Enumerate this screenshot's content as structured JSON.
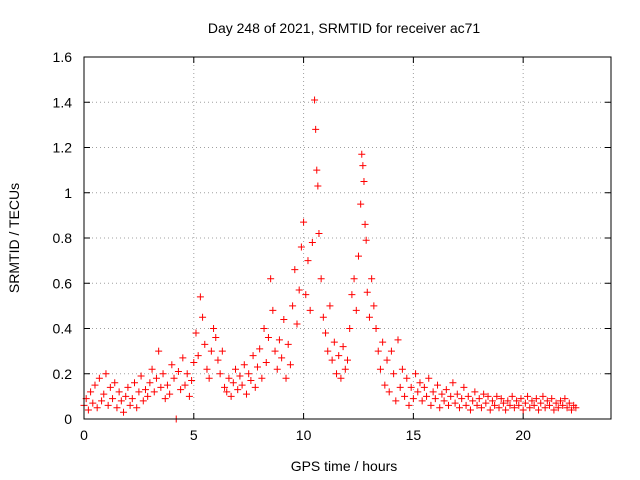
{
  "chart_data": {
    "type": "scatter",
    "title": "Day 248 of 2021, SRMTID for receiver ac71",
    "xlabel": "GPS time / hours",
    "ylabel": "SRMTID / TECUs",
    "xlim": [
      0,
      24
    ],
    "ylim": [
      0,
      1.6
    ],
    "xticks": [
      0,
      5,
      10,
      15,
      20
    ],
    "xtick_labels": [
      "0",
      "5",
      "10",
      "15",
      "20"
    ],
    "yticks": [
      0,
      0.2,
      0.4,
      0.6,
      0.8,
      1.0,
      1.2,
      1.4,
      1.6
    ],
    "ytick_labels": [
      "0",
      "0.2",
      "0.4",
      "0.6",
      "0.8",
      "1",
      "1.2",
      "1.4",
      "1.6"
    ],
    "grid": true,
    "marker": "+",
    "color": "#ff0000",
    "series": [
      {
        "name": "SRMTID",
        "points": [
          [
            0.0,
            0.06
          ],
          [
            0.1,
            0.09
          ],
          [
            0.2,
            0.04
          ],
          [
            0.3,
            0.12
          ],
          [
            0.4,
            0.07
          ],
          [
            0.5,
            0.15
          ],
          [
            0.6,
            0.05
          ],
          [
            0.7,
            0.18
          ],
          [
            0.8,
            0.08
          ],
          [
            0.9,
            0.11
          ],
          [
            1.0,
            0.2
          ],
          [
            1.1,
            0.06
          ],
          [
            1.2,
            0.14
          ],
          [
            1.3,
            0.09
          ],
          [
            1.4,
            0.16
          ],
          [
            1.5,
            0.05
          ],
          [
            1.6,
            0.12
          ],
          [
            1.7,
            0.08
          ],
          [
            1.8,
            0.03
          ],
          [
            1.9,
            0.1
          ],
          [
            2.0,
            0.14
          ],
          [
            2.1,
            0.06
          ],
          [
            2.2,
            0.09
          ],
          [
            2.3,
            0.16
          ],
          [
            2.4,
            0.05
          ],
          [
            2.5,
            0.12
          ],
          [
            2.6,
            0.19
          ],
          [
            2.7,
            0.08
          ],
          [
            2.8,
            0.13
          ],
          [
            2.9,
            0.1
          ],
          [
            3.0,
            0.16
          ],
          [
            3.1,
            0.22
          ],
          [
            3.2,
            0.12
          ],
          [
            3.3,
            0.18
          ],
          [
            3.4,
            0.3
          ],
          [
            3.5,
            0.14
          ],
          [
            3.6,
            0.2
          ],
          [
            3.7,
            0.09
          ],
          [
            3.8,
            0.15
          ],
          [
            3.9,
            0.11
          ],
          [
            4.0,
            0.24
          ],
          [
            4.1,
            0.18
          ],
          [
            4.2,
            0.0
          ],
          [
            4.3,
            0.21
          ],
          [
            4.4,
            0.13
          ],
          [
            4.5,
            0.27
          ],
          [
            4.6,
            0.15
          ],
          [
            4.7,
            0.2
          ],
          [
            4.8,
            0.1
          ],
          [
            4.9,
            0.17
          ],
          [
            5.0,
            0.25
          ],
          [
            5.1,
            0.38
          ],
          [
            5.2,
            0.28
          ],
          [
            5.3,
            0.54
          ],
          [
            5.4,
            0.45
          ],
          [
            5.5,
            0.33
          ],
          [
            5.6,
            0.22
          ],
          [
            5.7,
            0.18
          ],
          [
            5.8,
            0.3
          ],
          [
            5.9,
            0.4
          ],
          [
            6.0,
            0.36
          ],
          [
            6.1,
            0.26
          ],
          [
            6.2,
            0.2
          ],
          [
            6.3,
            0.3
          ],
          [
            6.4,
            0.14
          ],
          [
            6.5,
            0.12
          ],
          [
            6.6,
            0.18
          ],
          [
            6.7,
            0.1
          ],
          [
            6.8,
            0.16
          ],
          [
            6.9,
            0.22
          ],
          [
            7.0,
            0.13
          ],
          [
            7.1,
            0.19
          ],
          [
            7.2,
            0.15
          ],
          [
            7.3,
            0.24
          ],
          [
            7.4,
            0.11
          ],
          [
            7.5,
            0.2
          ],
          [
            7.6,
            0.17
          ],
          [
            7.7,
            0.28
          ],
          [
            7.8,
            0.14
          ],
          [
            7.9,
            0.23
          ],
          [
            8.0,
            0.31
          ],
          [
            8.1,
            0.18
          ],
          [
            8.2,
            0.4
          ],
          [
            8.3,
            0.25
          ],
          [
            8.4,
            0.36
          ],
          [
            8.5,
            0.62
          ],
          [
            8.6,
            0.48
          ],
          [
            8.7,
            0.3
          ],
          [
            8.8,
            0.22
          ],
          [
            8.9,
            0.35
          ],
          [
            9.0,
            0.27
          ],
          [
            9.1,
            0.44
          ],
          [
            9.2,
            0.18
          ],
          [
            9.3,
            0.33
          ],
          [
            9.4,
            0.24
          ],
          [
            9.5,
            0.5
          ],
          [
            9.6,
            0.66
          ],
          [
            9.7,
            0.42
          ],
          [
            9.8,
            0.57
          ],
          [
            9.9,
            0.76
          ],
          [
            10.0,
            0.87
          ],
          [
            10.1,
            0.55
          ],
          [
            10.2,
            0.7
          ],
          [
            10.3,
            0.48
          ],
          [
            10.4,
            0.78
          ],
          [
            10.5,
            1.41
          ],
          [
            10.55,
            1.28
          ],
          [
            10.6,
            1.1
          ],
          [
            10.65,
            1.03
          ],
          [
            10.7,
            0.82
          ],
          [
            10.8,
            0.62
          ],
          [
            10.9,
            0.45
          ],
          [
            11.0,
            0.38
          ],
          [
            11.1,
            0.3
          ],
          [
            11.2,
            0.5
          ],
          [
            11.3,
            0.26
          ],
          [
            11.4,
            0.34
          ],
          [
            11.5,
            0.2
          ],
          [
            11.6,
            0.28
          ],
          [
            11.7,
            0.18
          ],
          [
            11.8,
            0.32
          ],
          [
            11.9,
            0.22
          ],
          [
            12.0,
            0.26
          ],
          [
            12.1,
            0.4
          ],
          [
            12.2,
            0.55
          ],
          [
            12.3,
            0.62
          ],
          [
            12.4,
            0.48
          ],
          [
            12.5,
            0.72
          ],
          [
            12.6,
            0.95
          ],
          [
            12.65,
            1.17
          ],
          [
            12.7,
            1.12
          ],
          [
            12.75,
            1.05
          ],
          [
            12.8,
            0.86
          ],
          [
            12.85,
            0.79
          ],
          [
            12.9,
            0.56
          ],
          [
            13.0,
            0.45
          ],
          [
            13.1,
            0.62
          ],
          [
            13.2,
            0.5
          ],
          [
            13.3,
            0.4
          ],
          [
            13.4,
            0.3
          ],
          [
            13.5,
            0.22
          ],
          [
            13.6,
            0.34
          ],
          [
            13.7,
            0.15
          ],
          [
            13.8,
            0.26
          ],
          [
            13.9,
            0.12
          ],
          [
            14.0,
            0.3
          ],
          [
            14.1,
            0.2
          ],
          [
            14.2,
            0.08
          ],
          [
            14.3,
            0.35
          ],
          [
            14.4,
            0.14
          ],
          [
            14.5,
            0.22
          ],
          [
            14.6,
            0.1
          ],
          [
            14.7,
            0.18
          ],
          [
            14.8,
            0.06
          ],
          [
            14.9,
            0.14
          ],
          [
            15.0,
            0.09
          ],
          [
            15.1,
            0.2
          ],
          [
            15.2,
            0.12
          ],
          [
            15.3,
            0.16
          ],
          [
            15.4,
            0.08
          ],
          [
            15.5,
            0.14
          ],
          [
            15.6,
            0.1
          ],
          [
            15.7,
            0.18
          ],
          [
            15.8,
            0.06
          ],
          [
            15.9,
            0.12
          ],
          [
            16.0,
            0.09
          ],
          [
            16.1,
            0.15
          ],
          [
            16.2,
            0.05
          ],
          [
            16.3,
            0.11
          ],
          [
            16.4,
            0.08
          ],
          [
            16.5,
            0.13
          ],
          [
            16.6,
            0.06
          ],
          [
            16.7,
            0.1
          ],
          [
            16.8,
            0.16
          ],
          [
            16.9,
            0.07
          ],
          [
            17.0,
            0.11
          ],
          [
            17.1,
            0.05
          ],
          [
            17.2,
            0.09
          ],
          [
            17.3,
            0.14
          ],
          [
            17.4,
            0.06
          ],
          [
            17.5,
            0.1
          ],
          [
            17.6,
            0.04
          ],
          [
            17.7,
            0.08
          ],
          [
            17.8,
            0.12
          ],
          [
            17.9,
            0.06
          ],
          [
            18.0,
            0.09
          ],
          [
            18.1,
            0.05
          ],
          [
            18.2,
            0.11
          ],
          [
            18.3,
            0.07
          ],
          [
            18.4,
            0.1
          ],
          [
            18.5,
            0.04
          ],
          [
            18.6,
            0.08
          ],
          [
            18.7,
            0.06
          ],
          [
            18.8,
            0.1
          ],
          [
            18.9,
            0.05
          ],
          [
            19.0,
            0.09
          ],
          [
            19.1,
            0.07
          ],
          [
            19.2,
            0.04
          ],
          [
            19.3,
            0.08
          ],
          [
            19.4,
            0.06
          ],
          [
            19.5,
            0.1
          ],
          [
            19.6,
            0.05
          ],
          [
            19.7,
            0.08
          ],
          [
            19.8,
            0.06
          ],
          [
            19.9,
            0.09
          ],
          [
            20.0,
            0.04
          ],
          [
            20.1,
            0.07
          ],
          [
            20.2,
            0.1
          ],
          [
            20.3,
            0.05
          ],
          [
            20.4,
            0.08
          ],
          [
            20.5,
            0.06
          ],
          [
            20.6,
            0.09
          ],
          [
            20.7,
            0.04
          ],
          [
            20.8,
            0.07
          ],
          [
            20.9,
            0.1
          ],
          [
            21.0,
            0.05
          ],
          [
            21.1,
            0.08
          ],
          [
            21.2,
            0.06
          ],
          [
            21.3,
            0.09
          ],
          [
            21.4,
            0.04
          ],
          [
            21.5,
            0.07
          ],
          [
            21.6,
            0.05
          ],
          [
            21.7,
            0.08
          ],
          [
            21.8,
            0.06
          ],
          [
            21.9,
            0.09
          ],
          [
            22.0,
            0.05
          ],
          [
            22.1,
            0.07
          ],
          [
            22.2,
            0.04
          ],
          [
            22.3,
            0.06
          ],
          [
            22.4,
            0.05
          ]
        ]
      }
    ]
  }
}
